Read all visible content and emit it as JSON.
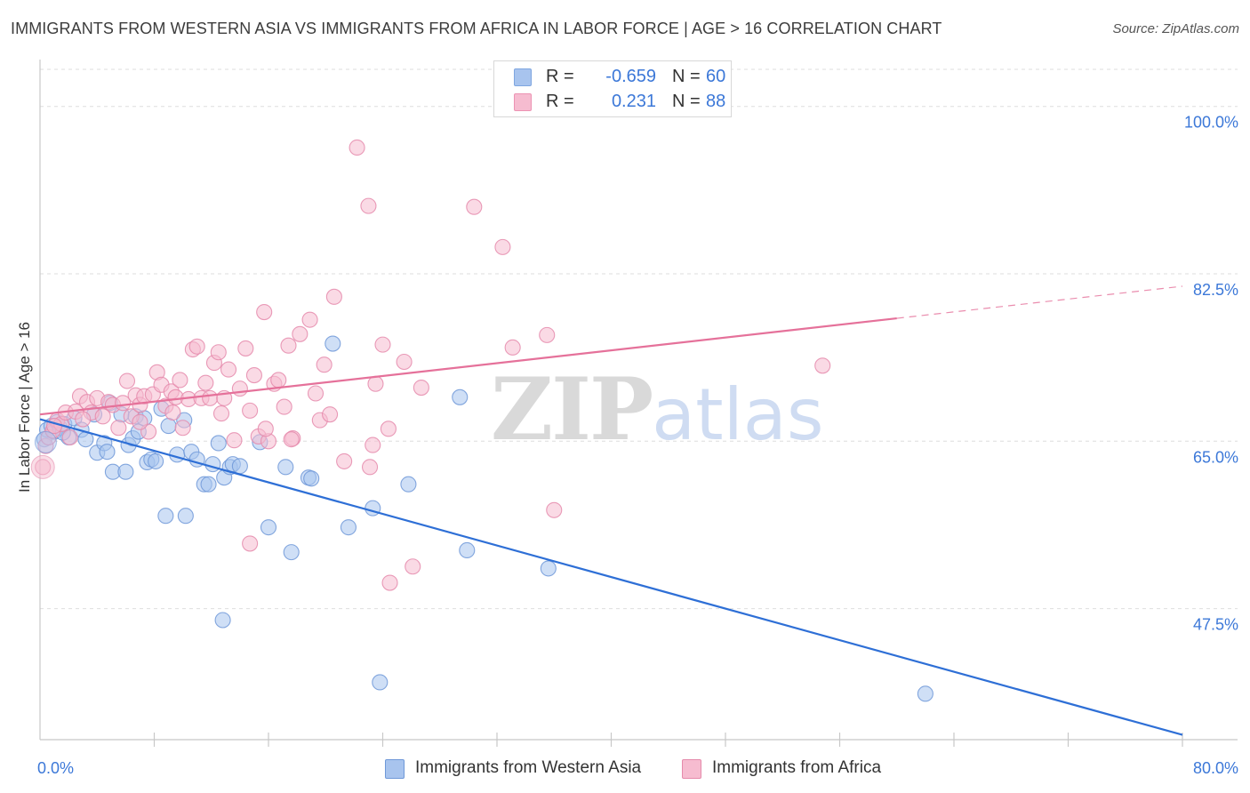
{
  "header": {
    "title": "IMMIGRANTS FROM WESTERN ASIA VS IMMIGRANTS FROM AFRICA IN LABOR FORCE | AGE > 16 CORRELATION CHART",
    "source": "Source: ZipAtlas.com"
  },
  "watermark": {
    "zip": "ZIP",
    "atlas": "atlas"
  },
  "legend": {
    "rows": [
      {
        "r_label": "R =",
        "r_value": "-0.659",
        "n_label": "N =",
        "n_value": "60",
        "color": "#a8c4ee",
        "border": "#7fa6e0"
      },
      {
        "r_label": "R =",
        "r_value": "0.231",
        "n_label": "N =",
        "n_value": "88",
        "color": "#f6bcd0",
        "border": "#ec93b3"
      }
    ]
  },
  "bottom_legend": [
    {
      "label": "Immigrants from Western Asia",
      "color": "#a8c4ee",
      "border": "#6f98d8"
    },
    {
      "label": "Immigrants from Africa",
      "color": "#f6bcd0",
      "border": "#e58aab"
    }
  ],
  "chart_data": {
    "type": "scatter",
    "title": "IMMIGRANTS FROM WESTERN ASIA VS IMMIGRANTS FROM AFRICA IN LABOR FORCE | AGE > 16 CORRELATION CHART",
    "xlabel": "",
    "ylabel": "In Labor Force | Age > 16",
    "xlim": [
      0,
      80
    ],
    "ylim": [
      33.8,
      104.9
    ],
    "x_tick_labels": [
      {
        "value": 0,
        "label": "0.0%"
      },
      {
        "value": 80,
        "label": "80.0%"
      }
    ],
    "y_tick_labels": [
      {
        "value": 100,
        "label": "100.0%"
      },
      {
        "value": 82.5,
        "label": "82.5%"
      },
      {
        "value": 65,
        "label": "65.0%"
      },
      {
        "value": 47.5,
        "label": "47.5%"
      }
    ],
    "grid": true,
    "legend_position": "top-center",
    "series": [
      {
        "name": "Immigrants from Western Asia",
        "color": "#6f98d8",
        "fill": "#a8c4ee",
        "trend": {
          "x0": 0,
          "y0": 67.3,
          "x1": 80,
          "y1": 34.3,
          "dashed_from": null
        },
        "points": [
          [
            0.3,
            65.2
          ],
          [
            0.5,
            66.2
          ],
          [
            0.8,
            66.6
          ],
          [
            1.0,
            66.0
          ],
          [
            1.2,
            67.0
          ],
          [
            1.4,
            66.4
          ],
          [
            1.7,
            66.8
          ],
          [
            2.0,
            65.4
          ],
          [
            2.4,
            67.4
          ],
          [
            2.9,
            66.2
          ],
          [
            3.2,
            65.2
          ],
          [
            3.8,
            67.8
          ],
          [
            4.0,
            63.8
          ],
          [
            4.5,
            64.8
          ],
          [
            4.7,
            63.9
          ],
          [
            4.9,
            69.0
          ],
          [
            5.1,
            61.8
          ],
          [
            5.7,
            67.8
          ],
          [
            6.0,
            61.8
          ],
          [
            6.2,
            64.6
          ],
          [
            6.5,
            65.3
          ],
          [
            6.7,
            67.6
          ],
          [
            6.9,
            66.0
          ],
          [
            7.3,
            67.4
          ],
          [
            7.5,
            62.8
          ],
          [
            7.8,
            63.1
          ],
          [
            8.1,
            62.9
          ],
          [
            8.5,
            68.4
          ],
          [
            8.8,
            57.2
          ],
          [
            9.0,
            66.6
          ],
          [
            9.6,
            63.6
          ],
          [
            10.1,
            67.2
          ],
          [
            10.2,
            57.2
          ],
          [
            10.6,
            63.9
          ],
          [
            11.0,
            63.1
          ],
          [
            11.5,
            60.5
          ],
          [
            11.8,
            60.5
          ],
          [
            12.1,
            62.6
          ],
          [
            12.5,
            64.8
          ],
          [
            12.8,
            46.3
          ],
          [
            12.9,
            61.2
          ],
          [
            13.3,
            62.3
          ],
          [
            13.5,
            62.6
          ],
          [
            14.0,
            62.4
          ],
          [
            15.4,
            64.9
          ],
          [
            16.0,
            56.0
          ],
          [
            17.2,
            62.3
          ],
          [
            17.6,
            53.4
          ],
          [
            18.8,
            61.2
          ],
          [
            19.0,
            61.1
          ],
          [
            20.5,
            75.2
          ],
          [
            21.6,
            56.0
          ],
          [
            23.3,
            58.0
          ],
          [
            23.8,
            39.8
          ],
          [
            25.8,
            60.5
          ],
          [
            29.4,
            69.6
          ],
          [
            29.9,
            53.6
          ],
          [
            35.6,
            51.7
          ],
          [
            62.0,
            38.6
          ],
          [
            1.6,
            65.9
          ]
        ]
      },
      {
        "name": "Immigrants from Africa",
        "color": "#e58aab",
        "fill": "#f6bcd0",
        "trend": {
          "x0": 0,
          "y0": 67.8,
          "x1": 80,
          "y1": 81.2,
          "dashed_from": 60
        },
        "points": [
          [
            0.2,
            62.3
          ],
          [
            0.4,
            64.5
          ],
          [
            0.6,
            65.4
          ],
          [
            0.9,
            66.1
          ],
          [
            1.2,
            67.2
          ],
          [
            1.5,
            66.8
          ],
          [
            1.8,
            68.0
          ],
          [
            2.1,
            65.4
          ],
          [
            2.5,
            68.1
          ],
          [
            2.8,
            69.7
          ],
          [
            3.3,
            69.1
          ],
          [
            3.6,
            68.0
          ],
          [
            4.0,
            69.5
          ],
          [
            4.4,
            67.6
          ],
          [
            4.8,
            69.1
          ],
          [
            5.1,
            68.8
          ],
          [
            5.5,
            66.4
          ],
          [
            5.8,
            69.0
          ],
          [
            6.1,
            71.3
          ],
          [
            6.4,
            67.6
          ],
          [
            6.7,
            69.8
          ],
          [
            7.0,
            68.8
          ],
          [
            7.3,
            69.7
          ],
          [
            7.6,
            66.0
          ],
          [
            7.9,
            69.9
          ],
          [
            8.2,
            72.2
          ],
          [
            8.5,
            70.9
          ],
          [
            8.8,
            68.7
          ],
          [
            9.2,
            70.2
          ],
          [
            9.5,
            69.6
          ],
          [
            9.8,
            71.4
          ],
          [
            10.0,
            66.4
          ],
          [
            10.4,
            69.4
          ],
          [
            10.7,
            74.6
          ],
          [
            11.0,
            74.9
          ],
          [
            11.3,
            69.5
          ],
          [
            11.6,
            71.1
          ],
          [
            11.9,
            69.5
          ],
          [
            12.2,
            73.2
          ],
          [
            12.5,
            74.3
          ],
          [
            12.9,
            69.5
          ],
          [
            13.2,
            72.5
          ],
          [
            13.6,
            65.1
          ],
          [
            14.0,
            70.5
          ],
          [
            14.4,
            74.7
          ],
          [
            14.7,
            68.2
          ],
          [
            15.0,
            71.9
          ],
          [
            15.3,
            65.5
          ],
          [
            15.7,
            78.5
          ],
          [
            16.0,
            65.0
          ],
          [
            16.4,
            71.0
          ],
          [
            16.7,
            71.4
          ],
          [
            17.1,
            68.6
          ],
          [
            17.4,
            75.0
          ],
          [
            17.7,
            65.3
          ],
          [
            18.2,
            76.2
          ],
          [
            18.9,
            77.7
          ],
          [
            19.3,
            70.0
          ],
          [
            19.6,
            67.2
          ],
          [
            19.9,
            73.0
          ],
          [
            20.3,
            67.8
          ],
          [
            20.6,
            80.1
          ],
          [
            21.3,
            62.9
          ],
          [
            22.2,
            95.7
          ],
          [
            23.0,
            89.6
          ],
          [
            23.3,
            64.6
          ],
          [
            23.5,
            71.0
          ],
          [
            24.0,
            75.1
          ],
          [
            24.4,
            66.3
          ],
          [
            25.5,
            73.3
          ],
          [
            26.7,
            70.6
          ],
          [
            30.4,
            89.5
          ],
          [
            32.4,
            85.3
          ],
          [
            33.1,
            74.8
          ],
          [
            35.5,
            76.1
          ],
          [
            36.0,
            57.8
          ],
          [
            54.8,
            72.9
          ],
          [
            24.5,
            50.2
          ],
          [
            26.1,
            51.9
          ],
          [
            14.7,
            54.3
          ],
          [
            7.0,
            67.0
          ],
          [
            9.3,
            68.0
          ],
          [
            12.7,
            67.9
          ],
          [
            15.8,
            66.3
          ],
          [
            17.6,
            65.2
          ],
          [
            23.1,
            62.3
          ],
          [
            3.0,
            67.3
          ],
          [
            1.0,
            66.6
          ]
        ]
      }
    ]
  }
}
